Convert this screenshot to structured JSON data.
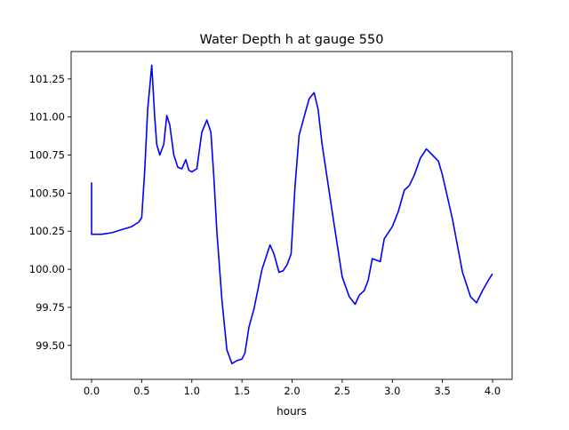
{
  "chart_data": {
    "type": "line",
    "title": "Water Depth h at gauge 550",
    "xlabel": "hours",
    "ylabel": "",
    "xlim": [
      -0.204,
      4.195
    ],
    "ylim": [
      99.277,
      101.43
    ],
    "xticks": [
      0.0,
      0.5,
      1.0,
      1.5,
      2.0,
      2.5,
      3.0,
      3.5,
      4.0
    ],
    "xtick_labels": [
      "0.0",
      "0.5",
      "1.0",
      "1.5",
      "2.0",
      "2.5",
      "3.0",
      "3.5",
      "4.0"
    ],
    "yticks": [
      99.5,
      99.75,
      100.0,
      100.25,
      100.5,
      100.75,
      101.0,
      101.25
    ],
    "ytick_labels": [
      "99.50",
      "99.75",
      "100.00",
      "100.25",
      "100.50",
      "100.75",
      "101.00",
      "101.25"
    ],
    "grid": false,
    "series": [
      {
        "name": "h",
        "color": "#0000ff",
        "x": [
          0,
          0,
          0.1,
          0.2,
          0.3,
          0.4,
          0.47,
          0.5,
          0.53,
          0.56,
          0.6,
          0.63,
          0.65,
          0.68,
          0.72,
          0.75,
          0.78,
          0.82,
          0.86,
          0.9,
          0.94,
          0.97,
          1.0,
          1.05,
          1.1,
          1.15,
          1.19,
          1.22,
          1.25,
          1.3,
          1.35,
          1.4,
          1.45,
          1.5,
          1.53,
          1.57,
          1.62,
          1.7,
          1.78,
          1.82,
          1.87,
          1.91,
          1.95,
          1.99,
          2.03,
          2.07,
          2.12,
          2.17,
          2.22,
          2.26,
          2.3,
          2.4,
          2.5,
          2.57,
          2.63,
          2.67,
          2.72,
          2.76,
          2.8,
          2.84,
          2.88,
          2.92,
          3.0,
          3.06,
          3.12,
          3.17,
          3.22,
          3.28,
          3.34,
          3.4,
          3.46,
          3.5,
          3.6,
          3.7,
          3.78,
          3.84,
          3.9,
          3.96,
          4.0
        ],
        "y": [
          100.57,
          100.23,
          100.23,
          100.24,
          100.26,
          100.28,
          100.31,
          100.34,
          100.65,
          101.05,
          101.34,
          101.0,
          100.82,
          100.75,
          100.82,
          101.01,
          100.95,
          100.75,
          100.67,
          100.66,
          100.72,
          100.65,
          100.64,
          100.66,
          100.9,
          100.98,
          100.9,
          100.6,
          100.25,
          99.8,
          99.47,
          99.38,
          99.4,
          99.41,
          99.45,
          99.62,
          99.74,
          100.0,
          100.16,
          100.1,
          99.98,
          99.99,
          100.03,
          100.1,
          100.55,
          100.88,
          101.0,
          101.12,
          101.16,
          101.05,
          100.82,
          100.38,
          99.95,
          99.82,
          99.77,
          99.83,
          99.86,
          99.93,
          100.07,
          100.06,
          100.05,
          100.2,
          100.28,
          100.38,
          100.52,
          100.55,
          100.62,
          100.73,
          100.79,
          100.75,
          100.71,
          100.62,
          100.33,
          99.98,
          99.82,
          99.78,
          99.86,
          99.93,
          99.97
        ]
      }
    ]
  }
}
